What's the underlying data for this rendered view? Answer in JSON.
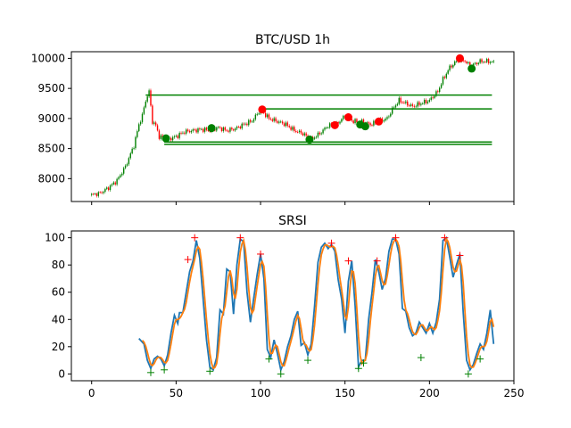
{
  "chart_data": [
    {
      "type": "candlestick",
      "title": "BTC/USD 1h",
      "xlim": [
        -12,
        250
      ],
      "ylim": [
        7620,
        10110
      ],
      "yticks": [
        8000,
        8500,
        9000,
        9500,
        10000
      ],
      "xticks": [
        0,
        50,
        100,
        150,
        200,
        250
      ],
      "show_xtick_labels": false,
      "colors": {
        "up": "#008000",
        "down": "#ff0000",
        "level": "#008000",
        "sell": "#ff0000",
        "buy": "#008000"
      },
      "price_anchors": [
        [
          0,
          7730
        ],
        [
          5,
          7760
        ],
        [
          10,
          7850
        ],
        [
          15,
          7970
        ],
        [
          20,
          8200
        ],
        [
          25,
          8550
        ],
        [
          28,
          8900
        ],
        [
          30,
          9050
        ],
        [
          32,
          9300
        ],
        [
          34,
          9450
        ],
        [
          36,
          8950
        ],
        [
          38,
          8880
        ],
        [
          40,
          8700
        ],
        [
          42,
          8680
        ],
        [
          45,
          8650
        ],
        [
          50,
          8700
        ],
        [
          55,
          8780
        ],
        [
          60,
          8800
        ],
        [
          65,
          8820
        ],
        [
          70,
          8800
        ],
        [
          75,
          8850
        ],
        [
          80,
          8800
        ],
        [
          85,
          8830
        ],
        [
          90,
          8900
        ],
        [
          95,
          8960
        ],
        [
          100,
          9150
        ],
        [
          105,
          9000
        ],
        [
          110,
          8950
        ],
        [
          115,
          8900
        ],
        [
          120,
          8800
        ],
        [
          125,
          8750
        ],
        [
          130,
          8650
        ],
        [
          135,
          8750
        ],
        [
          140,
          8880
        ],
        [
          145,
          8900
        ],
        [
          150,
          9050
        ],
        [
          155,
          8950
        ],
        [
          160,
          8950
        ],
        [
          165,
          8900
        ],
        [
          170,
          8950
        ],
        [
          175,
          9000
        ],
        [
          178,
          9150
        ],
        [
          182,
          9300
        ],
        [
          186,
          9250
        ],
        [
          190,
          9200
        ],
        [
          195,
          9250
        ],
        [
          200,
          9300
        ],
        [
          205,
          9450
        ],
        [
          208,
          9650
        ],
        [
          212,
          9850
        ],
        [
          216,
          9950
        ],
        [
          220,
          9980
        ],
        [
          224,
          9870
        ],
        [
          230,
          9950
        ],
        [
          235,
          9950
        ],
        [
          238,
          9930
        ]
      ],
      "levels": [
        {
          "price": 9390,
          "x_start": 32,
          "x_end": 237
        },
        {
          "price": 9160,
          "x_start": 100,
          "x_end": 237
        },
        {
          "price": 8610,
          "x_start": 43,
          "x_end": 237
        },
        {
          "price": 8570,
          "x_start": 43,
          "x_end": 237
        }
      ],
      "sell_points": [
        [
          101,
          9150
        ],
        [
          144,
          8890
        ],
        [
          152,
          9020
        ],
        [
          170,
          8950
        ],
        [
          218,
          10000
        ]
      ],
      "buy_points": [
        [
          44,
          8670
        ],
        [
          71,
          8840
        ],
        [
          129,
          8650
        ],
        [
          159,
          8900
        ],
        [
          162,
          8870
        ],
        [
          225,
          9830
        ]
      ]
    },
    {
      "type": "line",
      "title": "SRSI",
      "xlim": [
        -12,
        250
      ],
      "ylim": [
        -5,
        105
      ],
      "yticks": [
        0,
        20,
        40,
        60,
        80,
        100
      ],
      "xticks": [
        0,
        50,
        100,
        150,
        200,
        250
      ],
      "xtick_labels": [
        "0",
        "50",
        "100",
        "150",
        "200",
        "250"
      ],
      "series": [
        {
          "color": "#1f77b4",
          "x_start": 28,
          "x_end": 238,
          "anchors": [
            [
              28,
              26
            ],
            [
              31,
              22
            ],
            [
              33,
              10
            ],
            [
              35,
              4
            ],
            [
              37,
              11
            ],
            [
              39,
              13
            ],
            [
              41,
              11
            ],
            [
              43,
              6
            ],
            [
              45,
              14
            ],
            [
              47,
              30
            ],
            [
              49,
              43
            ],
            [
              51,
              37
            ],
            [
              52,
              45
            ],
            [
              54,
              45
            ],
            [
              56,
              60
            ],
            [
              58,
              75
            ],
            [
              60,
              83
            ],
            [
              62,
              98
            ],
            [
              64,
              85
            ],
            [
              66,
              55
            ],
            [
              68,
              25
            ],
            [
              70,
              5
            ],
            [
              72,
              3
            ],
            [
              74,
              12
            ],
            [
              76,
              47
            ],
            [
              78,
              44
            ],
            [
              80,
              77
            ],
            [
              82,
              75
            ],
            [
              84,
              44
            ],
            [
              86,
              80
            ],
            [
              88,
              99
            ],
            [
              90,
              97
            ],
            [
              92,
              60
            ],
            [
              94,
              38
            ],
            [
              96,
              56
            ],
            [
              98,
              73
            ],
            [
              100,
              88
            ],
            [
              102,
              70
            ],
            [
              104,
              18
            ],
            [
              106,
              12
            ],
            [
              108,
              25
            ],
            [
              110,
              15
            ],
            [
              112,
              3
            ],
            [
              114,
              9
            ],
            [
              116,
              20
            ],
            [
              118,
              28
            ],
            [
              120,
              40
            ],
            [
              122,
              46
            ],
            [
              124,
              21
            ],
            [
              126,
              23
            ],
            [
              128,
              14
            ],
            [
              130,
              22
            ],
            [
              132,
              50
            ],
            [
              134,
              82
            ],
            [
              136,
              93
            ],
            [
              138,
              96
            ],
            [
              140,
              92
            ],
            [
              142,
              95
            ],
            [
              144,
              90
            ],
            [
              146,
              69
            ],
            [
              148,
              55
            ],
            [
              150,
              30
            ],
            [
              152,
              68
            ],
            [
              154,
              83
            ],
            [
              156,
              50
            ],
            [
              158,
              5
            ],
            [
              160,
              10
            ],
            [
              162,
              10
            ],
            [
              164,
              40
            ],
            [
              166,
              60
            ],
            [
              168,
              84
            ],
            [
              170,
              75
            ],
            [
              172,
              62
            ],
            [
              174,
              70
            ],
            [
              176,
              90
            ],
            [
              178,
              99
            ],
            [
              180,
              99
            ],
            [
              182,
              88
            ],
            [
              184,
              48
            ],
            [
              186,
              46
            ],
            [
              188,
              34
            ],
            [
              190,
              28
            ],
            [
              192,
              30
            ],
            [
              194,
              38
            ],
            [
              196,
              34
            ],
            [
              198,
              30
            ],
            [
              200,
              37
            ],
            [
              202,
              30
            ],
            [
              204,
              38
            ],
            [
              206,
              55
            ],
            [
              208,
              98
            ],
            [
              210,
              100
            ],
            [
              212,
              86
            ],
            [
              214,
              71
            ],
            [
              216,
              80
            ],
            [
              218,
              88
            ],
            [
              220,
              45
            ],
            [
              222,
              10
            ],
            [
              224,
              3
            ],
            [
              226,
              7
            ],
            [
              228,
              15
            ],
            [
              230,
              22
            ],
            [
              232,
              18
            ],
            [
              234,
              30
            ],
            [
              236,
              47
            ],
            [
              238,
              22
            ]
          ]
        },
        {
          "color": "#ff7f0e",
          "x_start": 30,
          "x_end": 238,
          "smooth": 3
        }
      ],
      "sell_markers": [
        [
          57,
          84
        ],
        [
          61,
          100
        ],
        [
          88,
          100
        ],
        [
          100,
          88
        ],
        [
          142,
          96
        ],
        [
          152,
          83
        ],
        [
          169,
          83
        ],
        [
          180,
          100
        ],
        [
          209,
          100
        ],
        [
          218,
          87
        ]
      ],
      "buy_markers": [
        [
          35,
          1
        ],
        [
          43,
          3
        ],
        [
          70,
          2
        ],
        [
          105,
          11
        ],
        [
          112,
          0
        ],
        [
          128,
          10
        ],
        [
          158,
          4
        ],
        [
          161,
          8
        ],
        [
          195,
          12
        ],
        [
          223,
          0
        ],
        [
          230,
          11
        ]
      ]
    }
  ]
}
